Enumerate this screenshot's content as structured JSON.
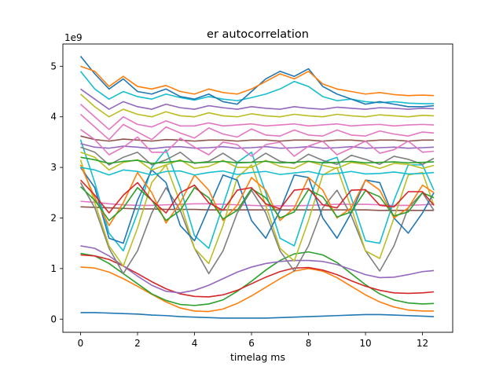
{
  "chart_data": {
    "type": "line",
    "title": "er autocorrelation",
    "xlabel": "timelag ms",
    "ylabel": "",
    "y_offset_label": "1e9",
    "xlim": [
      -0.62,
      13.06
    ],
    "ylim": [
      -0.26,
      5.44
    ],
    "x_ticks": [
      0,
      2,
      4,
      6,
      8,
      10,
      12
    ],
    "x_tick_labels": [
      "0",
      "2",
      "4",
      "6",
      "8",
      "10",
      "12"
    ],
    "y_ticks": [
      0,
      1,
      2,
      3,
      4,
      5
    ],
    "y_tick_labels": [
      "0",
      "1",
      "2",
      "3",
      "4",
      "5"
    ],
    "grid": false,
    "legend": "none",
    "x_sample": [
      0,
      0.5,
      1,
      1.5,
      2,
      2.5,
      3,
      3.5,
      4,
      4.5,
      5,
      5.5,
      6,
      6.5,
      7,
      7.5,
      8,
      8.5,
      9,
      9.5,
      10,
      10.5,
      11,
      11.5,
      12,
      12.4
    ],
    "series": [
      {
        "color": "#1f77b4",
        "values": [
          0.13,
          0.13,
          0.12,
          0.11,
          0.1,
          0.08,
          0.07,
          0.05,
          0.04,
          0.03,
          0.02,
          0.02,
          0.02,
          0.02,
          0.03,
          0.04,
          0.05,
          0.06,
          0.07,
          0.08,
          0.09,
          0.09,
          0.08,
          0.07,
          0.06,
          0.05
        ]
      },
      {
        "color": "#ff7f0e",
        "values": [
          1.03,
          1.01,
          0.93,
          0.8,
          0.65,
          0.49,
          0.34,
          0.22,
          0.16,
          0.15,
          0.2,
          0.31,
          0.46,
          0.63,
          0.8,
          0.95,
          1.0,
          0.95,
          0.82,
          0.65,
          0.48,
          0.34,
          0.24,
          0.18,
          0.16,
          0.16
        ]
      },
      {
        "color": "#2ca02c",
        "values": [
          1.3,
          1.25,
          1.1,
          0.9,
          0.7,
          0.5,
          0.37,
          0.29,
          0.27,
          0.3,
          0.38,
          0.55,
          0.75,
          0.97,
          1.16,
          1.29,
          1.33,
          1.27,
          1.12,
          0.9,
          0.68,
          0.5,
          0.38,
          0.32,
          0.3,
          0.31
        ]
      },
      {
        "color": "#d62728",
        "values": [
          1.27,
          1.25,
          1.18,
          1.05,
          0.9,
          0.74,
          0.6,
          0.5,
          0.45,
          0.44,
          0.48,
          0.57,
          0.7,
          0.83,
          0.94,
          1.01,
          1.02,
          0.97,
          0.88,
          0.76,
          0.65,
          0.57,
          0.52,
          0.51,
          0.52,
          0.54
        ]
      },
      {
        "color": "#9467bd",
        "values": [
          1.45,
          1.4,
          1.25,
          1.05,
          0.85,
          0.67,
          0.55,
          0.52,
          0.57,
          0.67,
          0.8,
          0.93,
          1.03,
          1.1,
          1.14,
          1.16,
          1.16,
          1.14,
          1.08,
          0.98,
          0.88,
          0.82,
          0.83,
          0.88,
          0.94,
          0.96
        ]
      },
      {
        "color": "#e377c2",
        "values": [
          2.33,
          2.31,
          2.28,
          2.26,
          2.25,
          2.25,
          2.26,
          2.27,
          2.28,
          2.28,
          2.27,
          2.26,
          2.25,
          2.24,
          2.24,
          2.24,
          2.25,
          2.26,
          2.27,
          2.27,
          2.27,
          2.26,
          2.25,
          2.25,
          2.26,
          2.27
        ]
      },
      {
        "color": "#8c564b",
        "values": [
          2.22,
          2.21,
          2.2,
          2.19,
          2.18,
          2.18,
          2.17,
          2.17,
          2.17,
          2.16,
          2.16,
          2.16,
          2.16,
          2.16,
          2.16,
          2.16,
          2.16,
          2.16,
          2.16,
          2.16,
          2.16,
          2.15,
          2.15,
          2.15,
          2.15,
          2.15
        ]
      },
      {
        "color": "#7f7f7f",
        "values": [
          2.7,
          2.2,
          1.4,
          0.9,
          1.35,
          2.1,
          2.6,
          2.15,
          1.4,
          0.9,
          1.35,
          2.1,
          2.55,
          2.1,
          1.35,
          0.95,
          1.45,
          2.2,
          2.55,
          2.05,
          1.35,
          0.95,
          1.45,
          2.2,
          2.5,
          2.15
        ]
      },
      {
        "color": "#bcbd22",
        "values": [
          3.15,
          2.3,
          1.45,
          1.05,
          1.8,
          2.7,
          3.05,
          2.3,
          1.4,
          1.1,
          1.85,
          2.8,
          3.05,
          2.25,
          1.4,
          1.15,
          1.95,
          2.85,
          3.0,
          2.2,
          1.35,
          1.2,
          2.0,
          2.85,
          2.9,
          2.25
        ]
      },
      {
        "color": "#17becf",
        "values": [
          3.55,
          2.7,
          1.7,
          1.35,
          2.1,
          3.0,
          3.35,
          2.6,
          1.65,
          1.4,
          2.25,
          3.1,
          3.3,
          2.5,
          1.6,
          1.45,
          2.3,
          3.1,
          3.2,
          2.4,
          1.55,
          1.5,
          2.35,
          3.05,
          3.05,
          2.55
        ]
      },
      {
        "color": "#1f77b4",
        "values": [
          3.0,
          2.6,
          1.6,
          1.5,
          2.35,
          2.95,
          2.7,
          1.85,
          1.55,
          2.2,
          2.85,
          2.75,
          1.95,
          1.6,
          2.15,
          2.85,
          2.8,
          2.0,
          1.6,
          2.1,
          2.75,
          2.7,
          2.0,
          1.7,
          2.1,
          2.5
        ]
      },
      {
        "color": "#ff7f0e",
        "values": [
          3.05,
          2.4,
          1.85,
          2.3,
          2.9,
          2.5,
          1.9,
          2.3,
          2.85,
          2.55,
          1.95,
          2.25,
          2.8,
          2.55,
          1.95,
          2.2,
          2.8,
          2.55,
          2.0,
          2.2,
          2.75,
          2.55,
          2.0,
          2.2,
          2.65,
          2.5
        ]
      },
      {
        "color": "#2ca02c",
        "values": [
          2.62,
          2.35,
          1.95,
          2.2,
          2.6,
          2.35,
          1.95,
          2.15,
          2.6,
          2.4,
          1.98,
          2.15,
          2.58,
          2.4,
          2.0,
          2.12,
          2.56,
          2.42,
          2.02,
          2.12,
          2.54,
          2.42,
          2.04,
          2.12,
          2.5,
          2.4
        ]
      },
      {
        "color": "#d62728",
        "values": [
          2.75,
          2.45,
          2.1,
          2.45,
          2.7,
          2.35,
          2.1,
          2.5,
          2.65,
          2.3,
          2.15,
          2.55,
          2.6,
          2.28,
          2.18,
          2.55,
          2.58,
          2.26,
          2.2,
          2.55,
          2.56,
          2.25,
          2.22,
          2.52,
          2.52,
          2.25
        ]
      },
      {
        "color": "#9467bd",
        "values": [
          3.47,
          3.4,
          3.38,
          3.42,
          3.4,
          3.37,
          3.4,
          3.41,
          3.38,
          3.39,
          3.41,
          3.38,
          3.39,
          3.41,
          3.38,
          3.39,
          3.41,
          3.38,
          3.39,
          3.41,
          3.38,
          3.39,
          3.4,
          3.38,
          3.39,
          3.4
        ]
      },
      {
        "color": "#8c564b",
        "values": [
          3.62,
          3.55,
          3.52,
          3.56,
          3.54,
          3.52,
          3.55,
          3.54,
          3.52,
          3.54,
          3.54,
          3.52,
          3.54,
          3.54,
          3.52,
          3.54,
          3.54,
          3.52,
          3.54,
          3.54,
          3.52,
          3.54,
          3.54,
          3.52,
          3.54,
          3.54
        ]
      },
      {
        "color": "#e377c2",
        "values": [
          3.75,
          3.55,
          3.25,
          3.4,
          3.6,
          3.3,
          3.3,
          3.58,
          3.4,
          3.25,
          3.5,
          3.45,
          3.22,
          3.45,
          3.5,
          3.22,
          3.42,
          3.52,
          3.25,
          3.38,
          3.52,
          3.28,
          3.35,
          3.52,
          3.3,
          3.32
        ]
      },
      {
        "color": "#7f7f7f",
        "values": [
          3.4,
          3.3,
          3.05,
          3.2,
          3.3,
          3.05,
          3.15,
          3.3,
          3.08,
          3.12,
          3.28,
          3.1,
          3.1,
          3.28,
          3.12,
          3.08,
          3.26,
          3.14,
          3.06,
          3.24,
          3.16,
          3.06,
          3.22,
          3.16,
          3.06,
          3.18
        ]
      },
      {
        "color": "#bcbd22",
        "values": [
          3.3,
          3.2,
          2.95,
          3.1,
          3.15,
          2.95,
          3.05,
          3.15,
          2.98,
          3.02,
          3.14,
          3.0,
          3.0,
          3.14,
          3.02,
          2.98,
          3.12,
          3.04,
          2.98,
          3.1,
          3.06,
          2.98,
          3.08,
          3.06,
          2.98,
          3.04
        ]
      },
      {
        "color": "#2ca02c",
        "values": [
          3.2,
          3.15,
          3.08,
          3.12,
          3.14,
          3.08,
          3.1,
          3.13,
          3.09,
          3.1,
          3.12,
          3.09,
          3.1,
          3.12,
          3.09,
          3.1,
          3.12,
          3.09,
          3.1,
          3.12,
          3.09,
          3.1,
          3.11,
          3.09,
          3.1,
          3.11
        ]
      },
      {
        "color": "#17becf",
        "values": [
          3.0,
          2.95,
          2.85,
          2.95,
          2.92,
          2.85,
          2.92,
          2.93,
          2.85,
          2.9,
          2.93,
          2.86,
          2.9,
          2.92,
          2.86,
          2.89,
          2.92,
          2.86,
          2.88,
          2.92,
          2.87,
          2.88,
          2.91,
          2.87,
          2.88,
          2.9
        ]
      },
      {
        "color": "#e377c2",
        "values": [
          4.05,
          3.8,
          3.55,
          3.85,
          3.7,
          3.55,
          3.8,
          3.68,
          3.58,
          3.78,
          3.66,
          3.6,
          3.76,
          3.64,
          3.62,
          3.74,
          3.64,
          3.62,
          3.74,
          3.64,
          3.62,
          3.72,
          3.66,
          3.62,
          3.7,
          3.68
        ]
      },
      {
        "color": "#e377c2",
        "values": [
          4.25,
          4.0,
          3.75,
          4.0,
          3.85,
          3.8,
          3.92,
          3.82,
          3.82,
          3.88,
          3.82,
          3.84,
          3.86,
          3.82,
          3.84,
          3.86,
          3.82,
          3.84,
          3.86,
          3.82,
          3.84,
          3.85,
          3.82,
          3.84,
          3.85,
          3.84
        ]
      },
      {
        "color": "#bcbd22",
        "values": [
          4.45,
          4.2,
          4.0,
          4.15,
          4.05,
          4.0,
          4.1,
          4.02,
          4.0,
          4.08,
          4.02,
          4.0,
          4.06,
          4.02,
          4.0,
          4.05,
          4.02,
          4.0,
          4.05,
          4.02,
          4.0,
          4.04,
          4.02,
          4.0,
          4.03,
          4.02
        ]
      },
      {
        "color": "#9467bd",
        "values": [
          4.55,
          4.35,
          4.15,
          4.3,
          4.2,
          4.15,
          4.25,
          4.18,
          4.15,
          4.22,
          4.18,
          4.15,
          4.2,
          4.17,
          4.15,
          4.2,
          4.17,
          4.15,
          4.19,
          4.17,
          4.15,
          4.18,
          4.17,
          4.15,
          4.17,
          4.16
        ]
      },
      {
        "color": "#17becf",
        "values": [
          4.9,
          4.55,
          4.35,
          4.5,
          4.4,
          4.35,
          4.45,
          4.38,
          4.33,
          4.4,
          4.35,
          4.32,
          4.38,
          4.45,
          4.55,
          4.7,
          4.6,
          4.4,
          4.32,
          4.35,
          4.3,
          4.28,
          4.3,
          4.27,
          4.26,
          4.26
        ]
      },
      {
        "color": "#1f77b4",
        "values": [
          5.2,
          4.85,
          4.55,
          4.75,
          4.5,
          4.45,
          4.55,
          4.4,
          4.35,
          4.45,
          4.3,
          4.25,
          4.5,
          4.75,
          4.9,
          4.8,
          4.95,
          4.6,
          4.45,
          4.35,
          4.25,
          4.3,
          4.25,
          4.2,
          4.2,
          4.22
        ]
      },
      {
        "color": "#ff7f0e",
        "values": [
          5.0,
          4.9,
          4.6,
          4.8,
          4.6,
          4.55,
          4.62,
          4.5,
          4.45,
          4.55,
          4.48,
          4.45,
          4.55,
          4.7,
          4.85,
          4.75,
          4.9,
          4.65,
          4.55,
          4.5,
          4.45,
          4.48,
          4.44,
          4.42,
          4.43,
          4.42
        ]
      }
    ]
  }
}
